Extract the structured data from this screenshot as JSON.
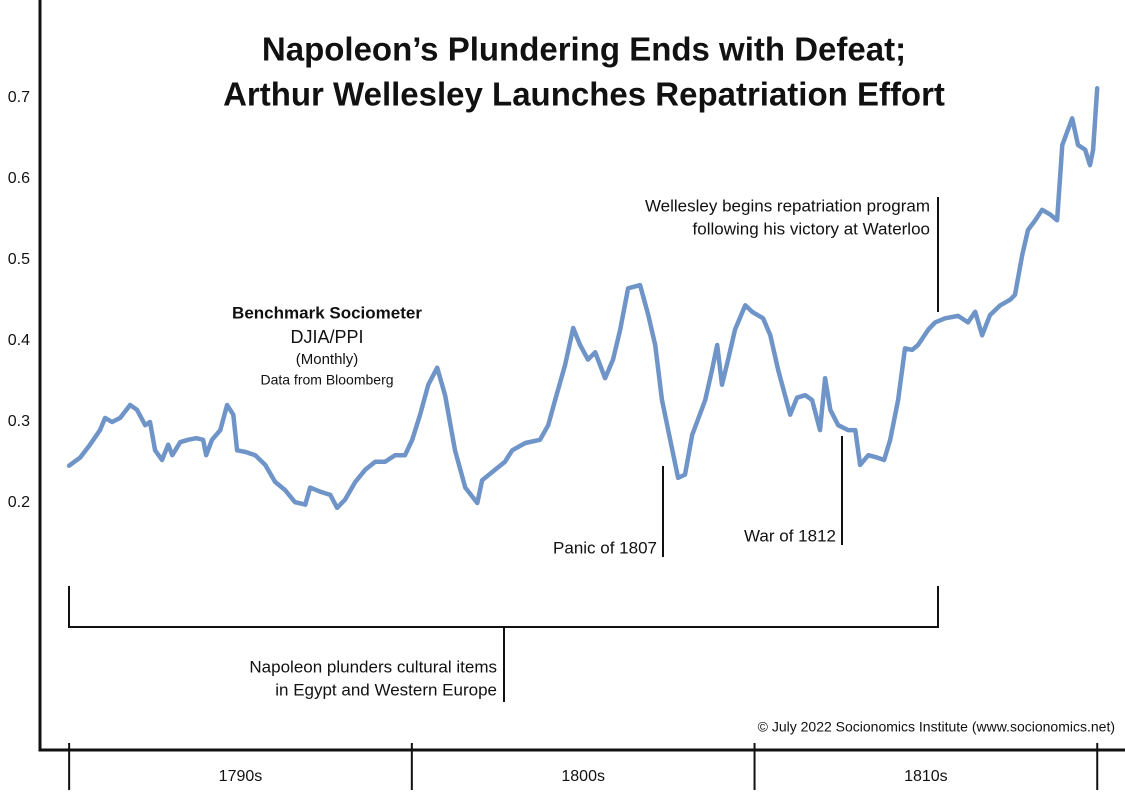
{
  "chart_data": {
    "type": "line",
    "title_lines": [
      "Napoleon’s Plundering Ends with Defeat;",
      "Arthur Wellesley Launches Repatriation Effort"
    ],
    "legend_box": [
      "Benchmark Sociometer",
      "DJIA/PPI",
      "(Monthly)",
      "Data from Bloomberg"
    ],
    "annotations": {
      "wellesley": [
        "Wellesley begins repatriation program",
        "following his victory at Waterloo"
      ],
      "panic": [
        "Panic of 1807"
      ],
      "war": [
        "War of 1812"
      ],
      "napoleon": [
        "Napoleon plunders cultural items",
        "in Egypt and Western Europe"
      ]
    },
    "credit": "© July 2022 Socionomics Institute (www.socionomics.net)",
    "color": "#6f94c8",
    "x": [
      1790.0,
      1790.32,
      1790.61,
      1790.9,
      1791.05,
      1791.25,
      1791.49,
      1791.78,
      1791.98,
      1792.22,
      1792.36,
      1792.51,
      1792.71,
      1792.89,
      1793.01,
      1793.24,
      1793.47,
      1793.71,
      1793.91,
      1794.0,
      1794.17,
      1794.41,
      1794.61,
      1794.79,
      1794.9,
      1795.14,
      1795.43,
      1795.72,
      1796.01,
      1796.3,
      1796.59,
      1796.89,
      1797.03,
      1797.32,
      1797.62,
      1797.82,
      1798.05,
      1798.35,
      1798.64,
      1798.93,
      1799.22,
      1799.51,
      1799.8,
      1800.01,
      1800.24,
      1800.48,
      1800.74,
      1800.97,
      1801.26,
      1801.56,
      1801.91,
      1802.05,
      1802.43,
      1802.72,
      1802.93,
      1803.31,
      1803.74,
      1803.98,
      1804.18,
      1804.47,
      1804.71,
      1804.91,
      1805.14,
      1805.35,
      1805.64,
      1805.87,
      1806.08,
      1806.31,
      1806.66,
      1806.9,
      1807.1,
      1807.3,
      1807.54,
      1807.77,
      1807.97,
      1808.18,
      1808.56,
      1808.76,
      1808.91,
      1809.05,
      1809.23,
      1809.43,
      1809.73,
      1809.93,
      1810.25,
      1810.46,
      1810.69,
      1810.89,
      1811.04,
      1811.24,
      1811.48,
      1811.68,
      1811.91,
      1812.06,
      1812.21,
      1812.44,
      1812.73,
      1812.94,
      1813.08,
      1813.32,
      1813.58,
      1813.78,
      1813.96,
      1814.19,
      1814.39,
      1814.6,
      1814.77,
      1815.07,
      1815.27,
      1815.56,
      1815.94,
      1816.23,
      1816.44,
      1816.64,
      1816.87,
      1817.17,
      1817.46,
      1817.6,
      1817.81,
      1817.98,
      1818.19,
      1818.39,
      1818.63,
      1818.83,
      1818.98,
      1819.27,
      1819.44,
      1819.65,
      1819.79,
      1819.88,
      1820.0
    ],
    "values": [
      0.246,
      0.256,
      0.272,
      0.29,
      0.305,
      0.3,
      0.305,
      0.321,
      0.315,
      0.296,
      0.3,
      0.265,
      0.253,
      0.272,
      0.259,
      0.275,
      0.278,
      0.28,
      0.278,
      0.259,
      0.278,
      0.29,
      0.321,
      0.309,
      0.265,
      0.263,
      0.259,
      0.247,
      0.226,
      0.216,
      0.201,
      0.198,
      0.219,
      0.214,
      0.21,
      0.194,
      0.204,
      0.226,
      0.241,
      0.251,
      0.251,
      0.259,
      0.259,
      0.278,
      0.309,
      0.346,
      0.367,
      0.333,
      0.265,
      0.219,
      0.2,
      0.228,
      0.241,
      0.251,
      0.265,
      0.274,
      0.278,
      0.296,
      0.327,
      0.37,
      0.416,
      0.395,
      0.377,
      0.386,
      0.354,
      0.377,
      0.414,
      0.465,
      0.469,
      0.432,
      0.395,
      0.327,
      0.278,
      0.231,
      0.235,
      0.284,
      0.327,
      0.364,
      0.395,
      0.346,
      0.377,
      0.414,
      0.444,
      0.436,
      0.428,
      0.407,
      0.364,
      0.333,
      0.309,
      0.33,
      0.333,
      0.327,
      0.29,
      0.354,
      0.315,
      0.296,
      0.29,
      0.29,
      0.247,
      0.259,
      0.256,
      0.253,
      0.278,
      0.327,
      0.391,
      0.389,
      0.395,
      0.414,
      0.423,
      0.428,
      0.431,
      0.423,
      0.436,
      0.407,
      0.432,
      0.444,
      0.451,
      0.457,
      0.506,
      0.537,
      0.549,
      0.562,
      0.556,
      0.549,
      0.642,
      0.675,
      0.642,
      0.636,
      0.617,
      0.636,
      0.712
    ],
    "xlim": [
      1789.15,
      1820.81
    ],
    "xticks": [
      1790,
      1800,
      1810,
      1820
    ],
    "x_band_labels": [
      "1790s",
      "1800s",
      "1810s"
    ],
    "ylim": [
      -0.105,
      0.821
    ],
    "yticks": [
      0.2,
      0.3,
      0.4,
      0.5,
      0.6,
      0.7
    ]
  }
}
